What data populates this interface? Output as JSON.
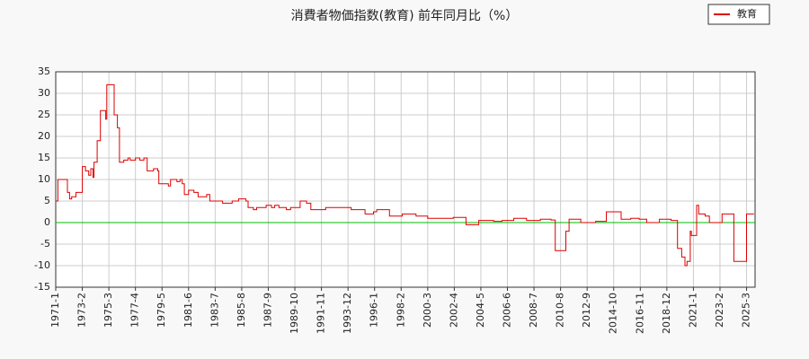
{
  "chart_data": {
    "type": "line",
    "title": "消費者物価指数(教育) 前年同月比（%）",
    "x": [
      "1971-1",
      "1971-3",
      "1971-10",
      "1971-12",
      "1972-2",
      "1972-4",
      "1972-8",
      "1973-2",
      "1973-5",
      "1973-8",
      "1973-10",
      "1973-12",
      "1974-1",
      "1974-4",
      "1974-7",
      "1974-12",
      "1975-1",
      "1975-8",
      "1975-11",
      "1976-1",
      "1976-5",
      "1976-9",
      "1976-11",
      "1977-4",
      "1977-8",
      "1977-12",
      "1978-3",
      "1978-9",
      "1979-1",
      "1979-2",
      "1979-11",
      "1980-1",
      "1980-7",
      "1980-10",
      "1980-12",
      "1981-2",
      "1981-6",
      "1981-11",
      "1982-3",
      "1982-11",
      "1983-2",
      "1984-2",
      "1984-11",
      "1985-5",
      "1985-12",
      "1986-2",
      "1986-7",
      "1986-10",
      "1987-7",
      "1987-12",
      "1988-3",
      "1988-7",
      "1989-2",
      "1989-6",
      "1990-3",
      "1990-9",
      "1991-1",
      "1992-3",
      "1994-3",
      "1995-4",
      "1995-12",
      "1996-3",
      "1997-3",
      "1998-3",
      "1999-4",
      "2000-3",
      "2002-3",
      "2003-3",
      "2004-3",
      "2005-5",
      "2006-1",
      "2006-12",
      "2007-12",
      "2009-1",
      "2009-11",
      "2010-3",
      "2011-1",
      "2011-4",
      "2012-3",
      "2013-5",
      "2014-3",
      "2015-5",
      "2016-2",
      "2016-10",
      "2017-5",
      "2018-5",
      "2019-4",
      "2019-10",
      "2020-2",
      "2020-5",
      "2020-7",
      "2020-10",
      "2020-11",
      "2021-4",
      "2021-6",
      "2021-12",
      "2022-4",
      "2023-4",
      "2024-3",
      "2025-3",
      "2025-10"
    ],
    "series": [
      {
        "name": "教育",
        "color": "#dd0000",
        "values": [
          5,
          10,
          10,
          7,
          5.5,
          6,
          7,
          13,
          12,
          11,
          12.5,
          10.5,
          14,
          19,
          26,
          24,
          32,
          25,
          22,
          14,
          14.5,
          15,
          14.5,
          15,
          14.5,
          15,
          12,
          12.5,
          12,
          9,
          8.5,
          10,
          9.5,
          10,
          9,
          6.5,
          7.5,
          7,
          6,
          6.5,
          5,
          4.5,
          5,
          5.5,
          5,
          3.5,
          3,
          3.5,
          4,
          3.5,
          4,
          3.5,
          3,
          3.5,
          5,
          4.5,
          3,
          3.5,
          3,
          2,
          2.5,
          3,
          1.5,
          2,
          1.5,
          1,
          1.2,
          -0.5,
          0.5,
          0.3,
          0.5,
          1,
          0.5,
          0.8,
          0.6,
          -6.5,
          -2,
          0.8,
          0,
          0.3,
          2.5,
          0.8,
          1,
          0.8,
          0,
          0.8,
          0.5,
          -6,
          -8,
          -10,
          -9,
          -2,
          -3,
          4,
          2,
          1.5,
          0,
          2,
          -9,
          2,
          2
        ]
      }
    ],
    "xlim": [
      "1971-1",
      "2025-11"
    ],
    "xticks": [
      "1971-1",
      "1973-2",
      "1975-3",
      "1977-4",
      "1979-5",
      "1981-6",
      "1983-7",
      "1985-8",
      "1987-9",
      "1989-10",
      "1991-11",
      "1993-12",
      "1996-1",
      "1998-2",
      "2000-3",
      "2002-4",
      "2004-5",
      "2006-6",
      "2008-7",
      "2010-8",
      "2012-9",
      "2014-10",
      "2016-11",
      "2018-12",
      "2021-1",
      "2023-2",
      "2025-3"
    ],
    "ylim": [
      -15,
      35
    ],
    "yticks": [
      -15,
      -10,
      -5,
      0,
      5,
      10,
      15,
      20,
      25,
      30,
      35
    ],
    "grid": true,
    "zero_line_color": "#00bb00",
    "legend": "top-right"
  }
}
